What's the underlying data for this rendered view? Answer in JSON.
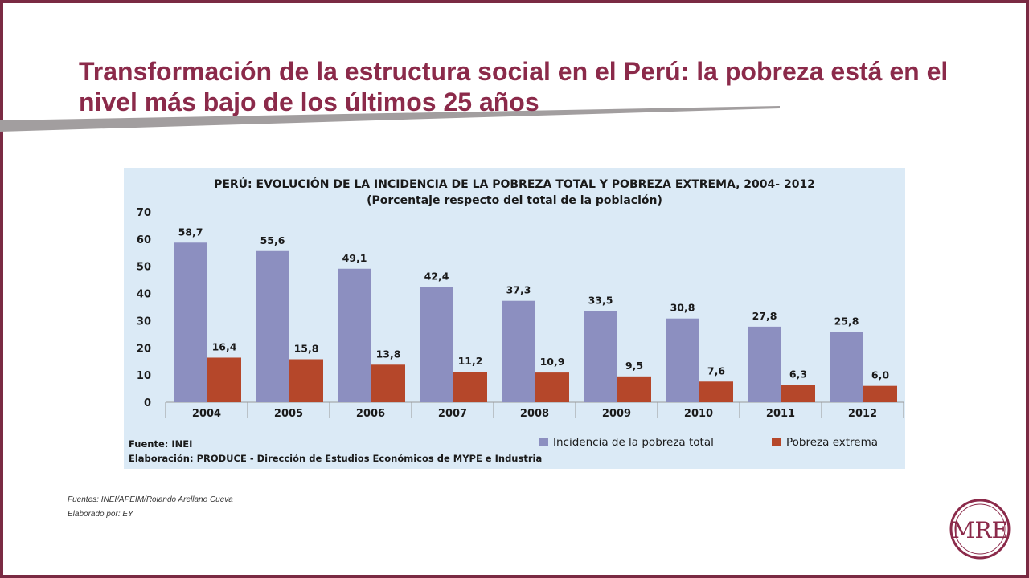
{
  "slide": {
    "title": "Transformación de la estructura social en el Perú: la pobreza está en el nivel más bajo de los últimos 25 años",
    "sources": "Fuentes: INEI/APEIM/Rolando Arellano Cueva",
    "prepared_by": "Elaborado por: EY",
    "logo_text": "MRE",
    "accent_color": "#8b2a4a",
    "frame_color": "#7a2a43"
  },
  "chart_data": {
    "type": "bar",
    "title": "PERÚ: EVOLUCIÓN DE LA INCIDENCIA DE LA POBREZA TOTAL Y POBREZA EXTREMA, 2004- 2012",
    "subtitle": "(Porcentaje respecto del total de la población)",
    "categories": [
      "2004",
      "2005",
      "2006",
      "2007",
      "2008",
      "2009",
      "2010",
      "2011",
      "2012"
    ],
    "series": [
      {
        "name": "Incidencia de la pobreza total",
        "color": "#8c8fc0",
        "values": [
          58.7,
          55.6,
          49.1,
          42.4,
          37.3,
          33.5,
          30.8,
          27.8,
          25.8
        ],
        "labels": [
          "58,7",
          "55,6",
          "49,1",
          "42,4",
          "37,3",
          "33,5",
          "30,8",
          "27,8",
          "25,8"
        ]
      },
      {
        "name": "Pobreza extrema",
        "color": "#b5472a",
        "values": [
          16.4,
          15.8,
          13.8,
          11.2,
          10.9,
          9.5,
          7.6,
          6.3,
          6.0
        ],
        "labels": [
          "16,4",
          "15,8",
          "13,8",
          "11,2",
          "10,9",
          "9,5",
          "7,6",
          "6,3",
          "6,0"
        ]
      }
    ],
    "ylim": [
      0,
      70
    ],
    "yticks": [
      0,
      10,
      20,
      30,
      40,
      50,
      60,
      70
    ],
    "grid": false,
    "legend_position": "bottom-right",
    "source_note": "Fuente: INEI",
    "elaboration_note": "Elaboración: PRODUCE - Dirección de Estudios Económicos de MYPE e Industria",
    "background_color": "#dbeaf6"
  }
}
